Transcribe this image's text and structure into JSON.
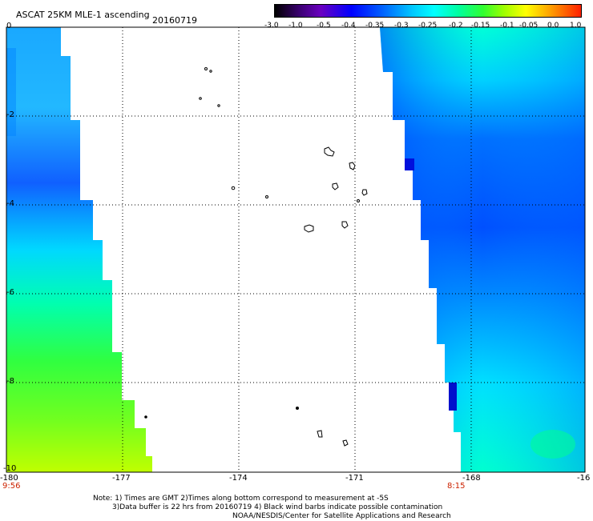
{
  "header": {
    "title": "ASCAT 25KM MLE-1 ascending",
    "date": "20160719"
  },
  "colorbar": {
    "labels": [
      "-3.0",
      "-1.0",
      "-0.5",
      "-0.4",
      "-0.35",
      "-0.3",
      "-0.25",
      "-0.2",
      "-0.15",
      "-0.1",
      "-0.05",
      "0.0",
      "1.0"
    ],
    "colors": [
      "#000000",
      "#5a00a0",
      "#0000ff",
      "#0055ff",
      "#00aaff",
      "#00ffff",
      "#00ffaa",
      "#00ff00",
      "#aaff00",
      "#ffff00",
      "#ffaa00",
      "#ff4400",
      "#ff0000"
    ]
  },
  "axes": {
    "x_ticks": [
      "-180",
      "-177",
      "-174",
      "-171",
      "-168",
      "-16"
    ],
    "y_ticks": [
      "0",
      "-2",
      "-4",
      "-6",
      "-8",
      "-10"
    ],
    "x_range": [
      -180,
      -165
    ],
    "y_range": [
      -10,
      0
    ]
  },
  "swath_times": {
    "left": "9:56",
    "right": "8:15"
  },
  "footer": {
    "line1": "Note: 1) Times are GMT 2)Times along bottom correspond to measurement at -5S",
    "line2": "3)Data buffer is 22 hrs from 20160719 4) Black wind barbs indicate possible contamination",
    "line3": "NOAA/NESDIS/Center for Satellite Applications and Research"
  }
}
